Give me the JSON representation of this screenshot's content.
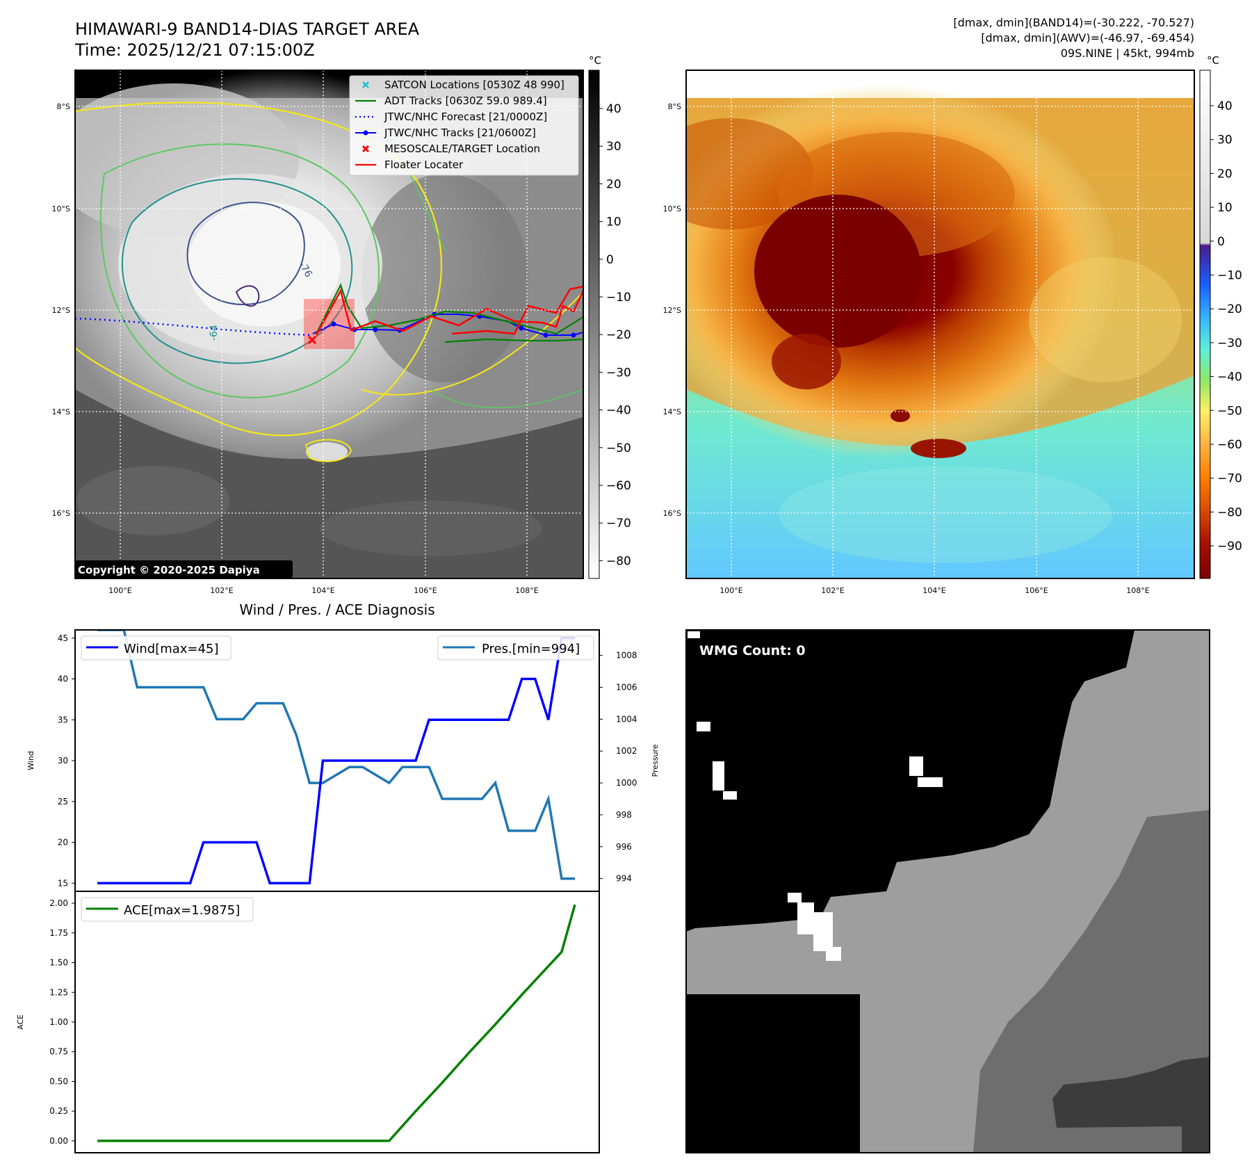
{
  "header": {
    "title": "HIMAWARI-9 BAND14-DIAS TARGET AREA",
    "time": "Time: 2025/12/21 07:15:00Z",
    "stat_band14": "[dmax, dmin](BAND14)=(-30.222, -70.527)",
    "stat_awv": "[dmax, dmin](AWV)=(-46.97, -69.454)",
    "storm": "09S.NINE | 45kt, 994mb",
    "copyright": "Copyright © 2020-2025 Dapiya"
  },
  "map": {
    "lat_labels": [
      "8°S",
      "10°S",
      "12°S",
      "14°S",
      "16°S"
    ],
    "lon_labels": [
      "100°E",
      "102°E",
      "104°E",
      "106°E",
      "108°E"
    ],
    "contour_labels": [
      "-76",
      "-64"
    ],
    "legend": [
      {
        "label": "SATCON Locations [0530Z 48 990]",
        "color": "#17becf",
        "style": "x"
      },
      {
        "label": "ADT Tracks [0630Z 59.0 989.4]",
        "color": "#008000",
        "style": "line"
      },
      {
        "label": "JTWC/NHC Forecast [21/0000Z]",
        "color": "#0000ff",
        "style": "dotted"
      },
      {
        "label": "JTWC/NHC Tracks [21/0600Z]",
        "color": "#0000ff",
        "style": "line-dot"
      },
      {
        "label": "MESOSCALE/TARGET Location",
        "color": "#ff0000",
        "style": "x"
      },
      {
        "label": "Floater Locater",
        "color": "#ff0000",
        "style": "line"
      }
    ]
  },
  "colorbar_gray": {
    "unit": "°C",
    "ticks": [
      "40",
      "30",
      "20",
      "10",
      "0",
      "−10",
      "−20",
      "−30",
      "−40",
      "−50",
      "−60",
      "−70",
      "−80"
    ]
  },
  "colorbar_awv": {
    "unit": "°C",
    "ticks": [
      "40",
      "30",
      "20",
      "10",
      "0",
      "−10",
      "−20",
      "−30",
      "−40",
      "−50",
      "−60",
      "−70",
      "−80",
      "−90"
    ]
  },
  "wmg": {
    "label": "WMG Count: 0"
  },
  "chart_data": [
    {
      "type": "line",
      "title": "Wind / Pres. / ACE Diagnosis",
      "ylabel": "Wind",
      "ylabel_right": "Pressure",
      "ylim": [
        14,
        46
      ],
      "ylim_right": [
        993.2,
        1009.6
      ],
      "y_ticks": [
        "15",
        "20",
        "25",
        "30",
        "35",
        "40",
        "45"
      ],
      "y_ticks_right": [
        "994",
        "996",
        "998",
        "1000",
        "1002",
        "1004",
        "1006",
        "1008"
      ],
      "series": [
        {
          "name": "Wind[max=45]",
          "color": "#0000ff",
          "x": [
            0,
            7,
            8,
            12,
            13,
            16,
            17,
            24,
            25,
            31,
            32,
            33,
            34,
            35,
            36
          ],
          "values": [
            15,
            15,
            20,
            20,
            15,
            15,
            30,
            30,
            35,
            35,
            40,
            40,
            35,
            45,
            45
          ]
        },
        {
          "name": "Pres.[min=994]",
          "color": "#1f77b4",
          "x": [
            0,
            2,
            3,
            8,
            9,
            11,
            12,
            14,
            15,
            16,
            17,
            19,
            20,
            22,
            23,
            25,
            26,
            28,
            29,
            30,
            31,
            33,
            34,
            35,
            36
          ],
          "values": [
            1009.6,
            1009.6,
            1006,
            1006,
            1004,
            1004,
            1005,
            1005,
            1003,
            1000,
            1000,
            1001,
            1001,
            1000,
            1001,
            1001,
            999,
            999,
            999,
            1000,
            997,
            997,
            999,
            994,
            994
          ]
        }
      ]
    },
    {
      "type": "line",
      "ylabel": "ACE",
      "ylim": [
        -0.1,
        2.1
      ],
      "y_ticks": [
        "0.00",
        "0.25",
        "0.50",
        "0.75",
        "1.00",
        "1.25",
        "1.50",
        "1.75",
        "2.00"
      ],
      "series": [
        {
          "name": "ACE[max=1.9875]",
          "color": "#008000",
          "x": [
            0,
            22,
            24,
            26,
            28,
            30,
            32,
            34,
            35,
            36
          ],
          "values": [
            0,
            0,
            0.25,
            0.49,
            0.74,
            0.98,
            1.23,
            1.47,
            1.59,
            1.9875
          ]
        }
      ]
    }
  ]
}
